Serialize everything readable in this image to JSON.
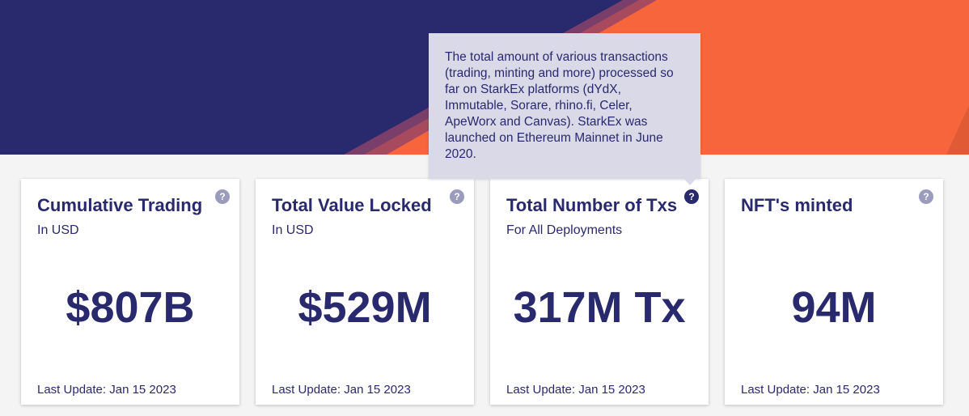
{
  "colors": {
    "navy": "#29296e",
    "orange": "#f6653b",
    "background": "#f4f4f4",
    "tooltip_bg": "#d9d9e8",
    "help_icon": "#9b9bbd"
  },
  "tooltip": {
    "text": "The total amount of various transactions (trading, minting and more) processed so far on StarkEx platforms (dYdX, Immutable, Sorare, rhino.fi, Celer, ApeWorx and Canvas). StarkEx was launched on Ethereum Mainnet in June 2020."
  },
  "cards": [
    {
      "title": "Cumulative Trading",
      "subtitle": "In USD",
      "value": "$807B",
      "last_update": "Last Update: Jan 15 2023",
      "help_icon": "question-icon"
    },
    {
      "title": "Total Value Locked",
      "subtitle": "In USD",
      "value": "$529M",
      "last_update": "Last Update: Jan 15 2023",
      "help_icon": "question-icon"
    },
    {
      "title": "Total Number of Txs",
      "subtitle": "For All Deployments",
      "value": "317M Tx",
      "last_update": "Last Update: Jan 15 2023",
      "help_icon": "question-icon"
    },
    {
      "title": "NFT's minted",
      "subtitle": "",
      "value": "94M",
      "last_update": "Last Update: Jan 15 2023",
      "help_icon": "question-icon"
    }
  ]
}
